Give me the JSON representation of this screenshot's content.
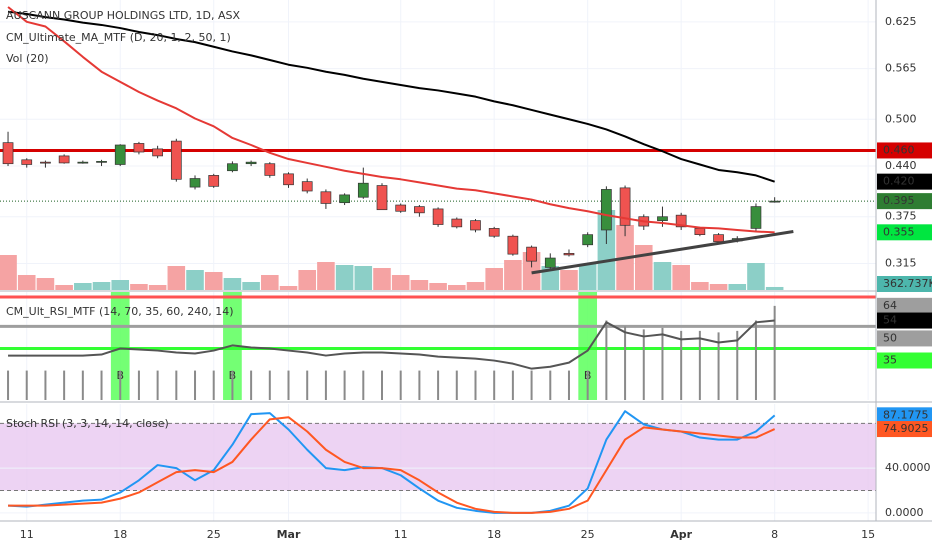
{
  "chart_data": [
    {
      "type": "candlestick",
      "title": "AUSCANN GROUP HOLDINGS LTD, 1D, ASX",
      "indicators": [
        "CM_Ultimate_MA_MTF (D, 20, 1, 2, 50, 1)",
        "Vol (20)"
      ],
      "ylim": [
        0.281,
        0.653
      ],
      "yticks": [
        0.625,
        0.565,
        {
          "value": 0.5,
          "label": "0.500"
        },
        {
          "value": 0.44,
          "label": "0.440"
        },
        0.375,
        0.315
      ],
      "grid": true,
      "open": [
        0.47,
        0.448,
        0.445,
        0.453,
        0.445,
        0.445,
        0.442,
        0.469,
        0.462,
        0.472,
        0.413,
        0.428,
        0.434,
        0.443,
        0.443,
        0.43,
        0.42,
        0.407,
        0.393,
        0.4,
        0.415,
        0.39,
        0.388,
        0.385,
        0.372,
        0.37,
        0.36,
        0.35,
        0.336,
        0.31,
        0.328,
        0.339,
        0.358,
        0.412,
        0.375,
        0.37,
        0.377,
        0.36,
        0.352,
        0.344,
        0.36,
        0.395
      ],
      "high": [
        0.484,
        0.45,
        0.447,
        0.455,
        0.447,
        0.448,
        0.468,
        0.471,
        0.466,
        0.475,
        0.428,
        0.43,
        0.446,
        0.447,
        0.445,
        0.432,
        0.424,
        0.41,
        0.405,
        0.438,
        0.418,
        0.392,
        0.39,
        0.387,
        0.374,
        0.372,
        0.362,
        0.352,
        0.338,
        0.328,
        0.333,
        0.355,
        0.414,
        0.415,
        0.378,
        0.388,
        0.38,
        0.362,
        0.354,
        0.35,
        0.392,
        0.4
      ],
      "low": [
        0.44,
        0.438,
        0.438,
        0.443,
        0.443,
        0.44,
        0.44,
        0.455,
        0.45,
        0.42,
        0.41,
        0.412,
        0.432,
        0.44,
        0.425,
        0.412,
        0.405,
        0.385,
        0.39,
        0.398,
        0.385,
        0.38,
        0.375,
        0.362,
        0.36,
        0.355,
        0.348,
        0.325,
        0.31,
        0.306,
        0.324,
        0.336,
        0.34,
        0.35,
        0.358,
        0.362,
        0.358,
        0.35,
        0.34,
        0.342,
        0.355,
        0.393
      ],
      "close": [
        0.443,
        0.442,
        0.444,
        0.444,
        0.445,
        0.446,
        0.467,
        0.458,
        0.453,
        0.423,
        0.424,
        0.414,
        0.443,
        0.445,
        0.428,
        0.416,
        0.408,
        0.392,
        0.403,
        0.418,
        0.384,
        0.382,
        0.38,
        0.365,
        0.362,
        0.358,
        0.35,
        0.327,
        0.318,
        0.322,
        0.326,
        0.352,
        0.41,
        0.364,
        0.363,
        0.375,
        0.362,
        0.352,
        0.343,
        0.347,
        0.388,
        0.395
      ],
      "up_color": "#388e3c",
      "down_color": "#ef5350",
      "close_line_color": "#1b5e20",
      "close_label_color": "#2e7d32",
      "volume": [
        4200000,
        1800000,
        1440000,
        600000,
        840000,
        960000,
        1200000,
        720000,
        600000,
        2880000,
        2400000,
        2160000,
        1440000,
        960000,
        1800000,
        480000,
        2400000,
        3360000,
        3000000,
        2880000,
        2640000,
        1800000,
        1200000,
        840000,
        600000,
        960000,
        2640000,
        3600000,
        4560000,
        2880000,
        2400000,
        3120000,
        9600000,
        7800000,
        5400000,
        3360000,
        3000000,
        960000,
        720000,
        720000,
        3240000,
        362737
      ],
      "volume_last_label": "362.737K",
      "volume_colors": {
        "up": "#8ccfc7",
        "down": "#f5a3a3"
      },
      "volume_label_color": "#4db6ac",
      "series": [
        {
          "color": "#000000",
          "values": [
            0.638,
            0.635,
            0.631,
            0.628,
            0.624,
            0.621,
            0.617,
            0.612,
            0.608,
            0.603,
            0.599,
            0.593,
            0.587,
            0.582,
            0.576,
            0.57,
            0.566,
            0.561,
            0.557,
            0.552,
            0.548,
            0.544,
            0.54,
            0.537,
            0.533,
            0.529,
            0.523,
            0.518,
            0.512,
            0.506,
            0.5,
            0.494,
            0.487,
            0.478,
            0.468,
            0.459,
            0.449,
            0.442,
            0.435,
            0.432,
            0.428,
            0.42
          ],
          "last_label": "0.420",
          "label_color": "#000000"
        },
        {
          "color": "#e53935",
          "values": [
            0.644,
            0.625,
            0.619,
            0.6,
            0.58,
            0.561,
            0.548,
            0.535,
            0.524,
            0.514,
            0.501,
            0.491,
            0.476,
            0.467,
            0.457,
            0.449,
            0.444,
            0.439,
            0.434,
            0.43,
            0.426,
            0.423,
            0.419,
            0.415,
            0.411,
            0.409,
            0.405,
            0.401,
            0.397,
            0.391,
            0.386,
            0.382,
            0.377,
            0.373,
            0.369,
            0.367,
            0.364,
            0.361,
            0.36,
            0.358,
            0.356,
            0.355
          ],
          "label_color": "#00e640"
        }
      ],
      "hlines": [
        {
          "value": 0.46,
          "label": "0.460",
          "color": "#d50000"
        }
      ],
      "trendline": {
        "x": [
          28,
          42
        ],
        "y": [
          0.303,
          0.356
        ],
        "color": "#424242"
      }
    },
    {
      "type": "line",
      "title": "CM_Ult_RSI_MTF (14, 70, 35, 60, 240, 14)",
      "ylim": [
        0,
        73.4
      ],
      "levels": [
        {
          "value": 70,
          "color": "#ff5252"
        },
        {
          "value": 50,
          "color": "#9e9e9e",
          "label_color": "#9e9e9e"
        },
        {
          "value": 35,
          "color": "#33ff33",
          "label_color": "#33ff33"
        }
      ],
      "bars": {
        "color": "#8a8a8a",
        "label_color": "#9e9e9e",
        "values": [
          20,
          20,
          20,
          20,
          20,
          20,
          20,
          20,
          20,
          20,
          20,
          20,
          20,
          20,
          20,
          20,
          20,
          20,
          20,
          20,
          20,
          20,
          20,
          20,
          20,
          20,
          20,
          20,
          20,
          20,
          20,
          20,
          54,
          50,
          48,
          49,
          47,
          47,
          46,
          47,
          54,
          64
        ]
      },
      "series": [
        {
          "color": "#555555",
          "label_color": "#000000",
          "values": [
            30.2,
            30.2,
            30.2,
            30.2,
            30.2,
            30.9,
            35.0,
            34.3,
            33.6,
            32.3,
            31.6,
            33.6,
            37.1,
            35.7,
            35.0,
            33.6,
            32.3,
            30.2,
            31.6,
            32.3,
            32.3,
            31.6,
            30.9,
            29.5,
            28.8,
            28.1,
            26.8,
            24.7,
            21.3,
            22.6,
            25.4,
            33.6,
            52.8,
            46.0,
            43.2,
            44.6,
            41.2,
            41.9,
            39.1,
            40.5,
            52.8,
            54
          ]
        }
      ],
      "signals": [
        {
          "x": 6,
          "label": "B"
        },
        {
          "x": 12,
          "label": "B"
        },
        {
          "x": 31,
          "label": "B"
        }
      ],
      "signal_color": "#5cff5c"
    },
    {
      "type": "line",
      "title": "Stoch RSI (3, 3, 14, 14, close)",
      "ylim": [
        -7.3,
        97.3
      ],
      "yticks": [
        {
          "value": 40,
          "label": "40.0000"
        },
        {
          "value": 0,
          "label": "0.0000"
        }
      ],
      "band": {
        "values": [
          20,
          80
        ],
        "color": "#e8c8f0"
      },
      "series": [
        {
          "color": "#2196f3",
          "label_color": "#2196f3",
          "values": [
            6.4,
            5.5,
            7.3,
            9.1,
            10.9,
            11.8,
            18.2,
            29.1,
            42.7,
            40,
            29.1,
            38.2,
            60.9,
            88.2,
            89.1,
            74.5,
            56.4,
            40,
            38.2,
            40.9,
            40,
            33.6,
            21.8,
            10.9,
            4.5,
            1.8,
            0,
            0,
            0,
            1.8,
            6.4,
            21.8,
            65.5,
            90.9,
            79.1,
            74.5,
            72.7,
            67.3,
            65.5,
            65.5,
            72.7,
            87.1775
          ]
        },
        {
          "color": "#ff5722",
          "label_color": "#ff5722",
          "values": [
            6.4,
            6.4,
            6.4,
            7.3,
            8.2,
            9.1,
            12.7,
            18.2,
            27.3,
            36.4,
            38.2,
            36.4,
            45.5,
            65.5,
            83.6,
            85.5,
            72.7,
            56.4,
            45.5,
            40,
            40,
            38.2,
            29.1,
            18.2,
            9.1,
            3.6,
            0.9,
            0,
            0,
            0.9,
            3.6,
            10.9,
            38.2,
            65.5,
            76.4,
            74.5,
            72.7,
            70.9,
            69.1,
            67.3,
            67.3,
            74.9025
          ]
        }
      ],
      "xlim": [
        -0.43,
        46.42
      ],
      "xticks": [
        {
          "value": 1,
          "label": "11"
        },
        {
          "value": 6,
          "label": "18"
        },
        {
          "value": 11,
          "label": "25"
        },
        {
          "value": 15,
          "label": "Mar"
        },
        {
          "value": 21,
          "label": "11"
        },
        {
          "value": 26,
          "label": "18"
        },
        {
          "value": 31,
          "label": "25"
        },
        {
          "value": 36,
          "label": "Apr"
        },
        {
          "value": 41,
          "label": "8"
        },
        {
          "value": 46,
          "label": "15"
        }
      ]
    }
  ]
}
